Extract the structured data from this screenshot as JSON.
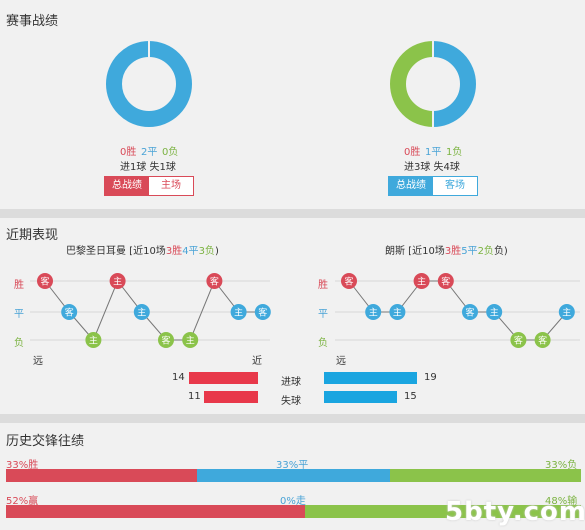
{
  "record_section": {
    "title": "赛事战绩",
    "left": {
      "win": "0胜",
      "draw": "2平",
      "loss": "0负",
      "goals": "进1球 失1球",
      "tab_active": "总战绩",
      "tab_other": "主场",
      "donut": [
        0,
        1,
        0
      ]
    },
    "right": {
      "win": "0胜",
      "draw": "1平",
      "loss": "1负",
      "goals": "进3球 失4球",
      "tab_active": "总战绩",
      "tab_other": "客场",
      "donut": [
        0,
        0.5,
        0.5
      ]
    }
  },
  "recent_section": {
    "title": "近期表现",
    "left": {
      "team": "巴黎圣日耳曼",
      "summary_prefix": " [近10场",
      "summary_win": "3胜",
      "summary_draw": "4平",
      "summary_loss": "3负",
      "summary_suffix": ")",
      "results": [
        "W",
        "D",
        "L",
        "W",
        "D",
        "L",
        "L",
        "W",
        "D",
        "D"
      ],
      "venues": [
        "客",
        "客",
        "主",
        "主",
        "主",
        "客",
        "主",
        "客",
        "主",
        "客"
      ]
    },
    "right": {
      "team": "朗斯",
      "summary_prefix": " [近10场",
      "summary_win": "3胜",
      "summary_draw": "5平",
      "summary_loss": "2负",
      "summary_suffix": "负)",
      "results": [
        "W",
        "D",
        "D",
        "W",
        "W",
        "D",
        "D",
        "L",
        "L",
        "D"
      ],
      "venues": [
        "客",
        "主",
        "主",
        "主",
        "客",
        "客",
        "主",
        "客",
        "客",
        "主"
      ]
    },
    "labels": {
      "win": "胜",
      "draw": "平",
      "loss": "负",
      "far": "远",
      "near": "近"
    },
    "goals": {
      "label": "进球",
      "left": 14,
      "right": 19
    },
    "conceded": {
      "label": "失球",
      "left": 11,
      "right": 15
    }
  },
  "h2h_section": {
    "title": "历史交锋往绩",
    "row1": {
      "left": "33%胜",
      "mid": "33%平",
      "right": "33%负",
      "segments": [
        0.333,
        0.334,
        0.333
      ]
    },
    "row2": {
      "left": "52%赢",
      "mid": "0%走",
      "right": "48%输",
      "segments": [
        0.52,
        0,
        0.48
      ]
    }
  },
  "watermark": "5bty.com",
  "colors": {
    "red": "#d94a58",
    "blue": "#3fa9dc",
    "green": "#8bc34a",
    "bar_red": "#e8384a",
    "bar_blue": "#1aa5e0"
  }
}
